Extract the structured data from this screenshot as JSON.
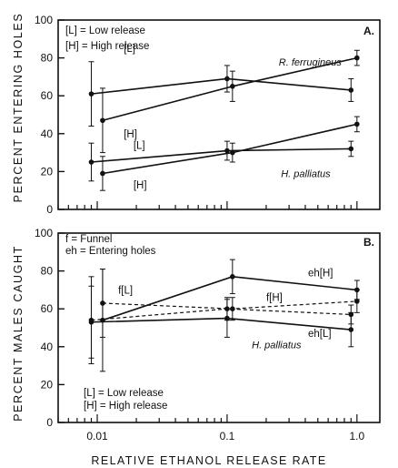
{
  "chart_data": [
    {
      "type": "line",
      "panel_label": "A.",
      "ylabel": "PERCENT ENTERING HOLES",
      "ylim": [
        0,
        100
      ],
      "yticks": [
        "0",
        "20",
        "40",
        "60",
        "80",
        "100"
      ],
      "x_scale": "log",
      "xlim": [
        0.005,
        1.5
      ],
      "x_tick_values": [
        0.01,
        0.1,
        1.0
      ],
      "legend": [
        "[L] = Low release",
        "[H] = High release"
      ],
      "species_labels": [
        {
          "text": "R. ferrugineus",
          "x": 0.25,
          "y": 78
        },
        {
          "text": "H. palliatus",
          "x": 0.26,
          "y": 19
        }
      ],
      "series": [
        {
          "name": "[L]",
          "x": [
            0.009,
            0.1,
            0.9
          ],
          "y": [
            61,
            69,
            63
          ],
          "err": [
            17,
            7,
            6
          ],
          "style": "solid",
          "label_x": 0.016,
          "label_y": 85
        },
        {
          "name": "[H]",
          "x": [
            0.011,
            0.11,
            1.0
          ],
          "y": [
            47,
            65,
            80
          ],
          "err": [
            17,
            8,
            4
          ],
          "style": "solid",
          "label_x": 0.016,
          "label_y": 40
        },
        {
          "name": "[L]",
          "x": [
            0.009,
            0.1,
            0.9
          ],
          "y": [
            25,
            31,
            32
          ],
          "err": [
            10,
            5,
            4
          ],
          "style": "solid",
          "label_x": 0.019,
          "label_y": 34
        },
        {
          "name": "[H]",
          "x": [
            0.011,
            0.11,
            1.0
          ],
          "y": [
            19,
            30,
            45
          ],
          "err": [
            9,
            5,
            4
          ],
          "style": "solid",
          "label_x": 0.019,
          "label_y": 13
        }
      ]
    },
    {
      "type": "line",
      "panel_label": "B.",
      "ylabel": "PERCENT MALES CAUGHT",
      "ylim": [
        0,
        100
      ],
      "yticks": [
        "0",
        "20",
        "40",
        "60",
        "80",
        "100"
      ],
      "x_scale": "log",
      "xlim": [
        0.005,
        1.5
      ],
      "x_tick_values": [
        0.01,
        0.1,
        1.0
      ],
      "xtick_labels": [
        "0.01",
        "0.1",
        "1.0"
      ],
      "xlabel": "RELATIVE ETHANOL RELEASE RATE",
      "legend_top": [
        "f = Funnel",
        "eh = Entering holes"
      ],
      "legend_bottom": [
        "[L] = Low release",
        "[H] = High release"
      ],
      "species_labels": [
        {
          "text": "H. palliatus",
          "x": 0.155,
          "y": 41
        }
      ],
      "series": [
        {
          "name": "eh[H]",
          "x": [
            0.011,
            0.11,
            1.0
          ],
          "y": [
            54,
            77,
            70
          ],
          "err": [
            27,
            9,
            5
          ],
          "style": "solid",
          "label_x": 0.42,
          "label_y": 79
        },
        {
          "name": "eh[L]",
          "x": [
            0.009,
            0.1,
            0.9
          ],
          "y": [
            53,
            55,
            49
          ],
          "err": [
            19,
            10,
            9
          ],
          "style": "solid",
          "label_x": 0.42,
          "label_y": 47
        },
        {
          "name": "f[H]",
          "x": [
            0.011,
            0.11,
            1.0
          ],
          "y": [
            63,
            60,
            64
          ],
          "err": [
            18,
            6,
            6
          ],
          "style": "dashed",
          "label_x": 0.2,
          "label_y": 66
        },
        {
          "name": "f[L]",
          "x": [
            0.009,
            0.1,
            0.9
          ],
          "y": [
            54,
            60,
            57
          ],
          "err": [
            23,
            6,
            5
          ],
          "style": "dashed",
          "label_x": 0.0145,
          "label_y": 70
        }
      ]
    }
  ]
}
